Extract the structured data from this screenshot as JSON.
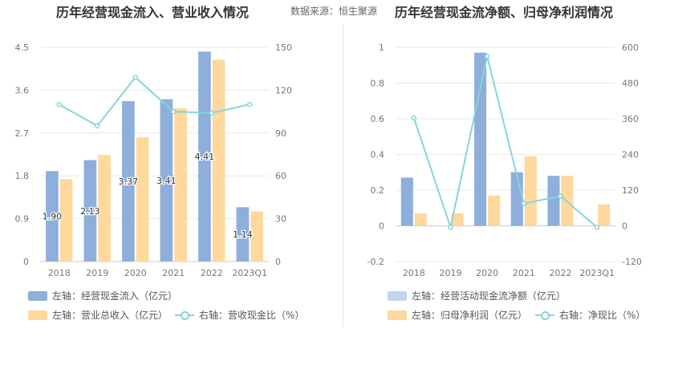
{
  "header": {
    "left_title": "历年经营现金流入、营业收入情况",
    "source": "数据来源：恒生聚源",
    "right_title": "历年经营现金流净额、归母净利润情况"
  },
  "colors": {
    "bar_blue": "#8EAEDB",
    "bar_light_blue": "#C3D4EC",
    "bar_orange": "#FFD89E",
    "line_cyan": "#86D5DA"
  },
  "legend_left": {
    "bar1": "左轴：经营现金流入（亿元）",
    "bar2": "左轴：营业总收入（亿元）",
    "line": "右轴：营收现金比（%）"
  },
  "legend_right": {
    "bar1": "左轴：经营活动现金流净额（亿元）",
    "bar2": "左轴：归母净利润（亿元）",
    "line": "右轴：净现比（%）"
  },
  "chart_data": [
    {
      "type": "bar",
      "categories": [
        "2018",
        "2019",
        "2020",
        "2021",
        "2022",
        "2023Q1"
      ],
      "left_axis": {
        "ticks": [
          "0",
          "0.9",
          "1.8",
          "2.7",
          "3.6",
          "4.5"
        ],
        "range": [
          0,
          4.5
        ]
      },
      "right_axis": {
        "ticks": [
          "0",
          "30",
          "60",
          "90",
          "120",
          "150"
        ],
        "range": [
          0,
          150
        ]
      },
      "series": [
        {
          "name": "左轴：经营现金流入（亿元）",
          "type": "bar",
          "axis": "left",
          "values": [
            1.9,
            2.13,
            3.37,
            3.41,
            4.41,
            1.14
          ],
          "labels": [
            "1.90",
            "2.13",
            "3.37",
            "3.41",
            "4.41",
            "1.14"
          ]
        },
        {
          "name": "左轴：营业总收入（亿元）",
          "type": "bar",
          "axis": "left",
          "values": [
            1.73,
            2.24,
            2.61,
            3.22,
            4.24,
            1.05
          ]
        },
        {
          "name": "右轴：营收现金比（%）",
          "type": "line",
          "axis": "right",
          "values": [
            110,
            95,
            129,
            105,
            104,
            110
          ]
        }
      ]
    },
    {
      "type": "bar",
      "categories": [
        "2018",
        "2019",
        "2020",
        "2021",
        "2022",
        "2023Q1"
      ],
      "left_axis": {
        "ticks": [
          "-0.2",
          "0",
          "0.2",
          "0.4",
          "0.6",
          "0.8",
          "1"
        ],
        "range": [
          -0.2,
          1
        ]
      },
      "right_axis": {
        "ticks": [
          "-120",
          "0",
          "120",
          "240",
          "360",
          "480",
          "600"
        ],
        "range": [
          -120,
          600
        ]
      },
      "series": [
        {
          "name": "左轴：经营活动现金流净额（亿元）",
          "type": "bar",
          "axis": "left",
          "values": [
            0.27,
            0,
            0.97,
            0.3,
            0.28,
            0
          ]
        },
        {
          "name": "左轴：归母净利润（亿元）",
          "type": "bar",
          "axis": "left",
          "values": [
            0.07,
            0.07,
            0.17,
            0.39,
            0.28,
            0.12
          ]
        },
        {
          "name": "右轴：净现比（%）",
          "type": "line",
          "axis": "right",
          "values": [
            363,
            -5,
            570,
            75,
            100,
            -5
          ]
        }
      ]
    }
  ]
}
